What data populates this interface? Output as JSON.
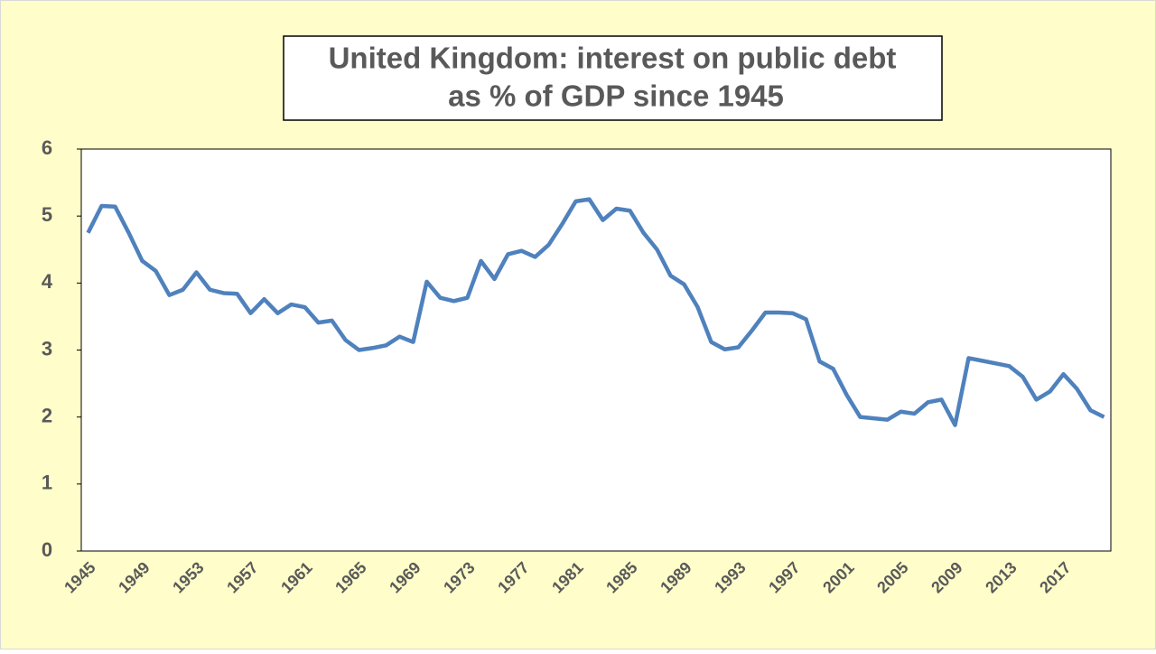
{
  "chart_data": {
    "type": "line",
    "title": "United Kingdom: interest on public debt",
    "subtitle": "as % of GDP since 1945",
    "categories": [
      "1945",
      null,
      null,
      null,
      "1949",
      null,
      null,
      null,
      "1953",
      null,
      null,
      null,
      "1957",
      null,
      null,
      null,
      "1961",
      null,
      null,
      null,
      "1965",
      null,
      null,
      null,
      "1969",
      null,
      null,
      null,
      "1973",
      null,
      null,
      null,
      "1977",
      null,
      null,
      null,
      "1981",
      null,
      null,
      null,
      "1985",
      null,
      null,
      null,
      "1989",
      null,
      null,
      null,
      "1993",
      null,
      null,
      null,
      "1997",
      null,
      null,
      null,
      "2001",
      null,
      null,
      null,
      "2005",
      null,
      null,
      null,
      "2009",
      null,
      null,
      null,
      "2013",
      null,
      null,
      null,
      "2017",
      null,
      null,
      null
    ],
    "values": [
      4.75,
      5.15,
      5.14,
      4.75,
      4.33,
      4.18,
      3.82,
      3.9,
      4.16,
      3.9,
      3.85,
      3.84,
      3.55,
      3.76,
      3.55,
      3.68,
      3.64,
      3.41,
      3.44,
      3.15,
      3.0,
      3.03,
      3.07,
      3.2,
      3.12,
      4.02,
      3.78,
      3.73,
      3.78,
      4.33,
      4.06,
      4.43,
      4.48,
      4.39,
      4.57,
      4.88,
      5.22,
      5.25,
      4.94,
      5.11,
      5.08,
      4.75,
      4.5,
      4.11,
      3.98,
      3.64,
      3.12,
      3.01,
      3.04,
      3.29,
      3.56,
      3.56,
      3.55,
      3.46,
      2.83,
      2.72,
      2.33,
      2.0,
      1.98,
      1.96,
      2.08,
      2.05,
      2.22,
      2.26,
      1.88,
      2.88,
      2.84,
      2.8,
      2.76,
      2.6,
      2.26,
      2.38,
      2.64,
      2.42,
      2.1,
      2.0
    ],
    "color": "#4f81bd",
    "ylim": [
      0,
      6
    ],
    "yticks": [
      0,
      1,
      2,
      3,
      4,
      5,
      6
    ],
    "grid": false
  }
}
